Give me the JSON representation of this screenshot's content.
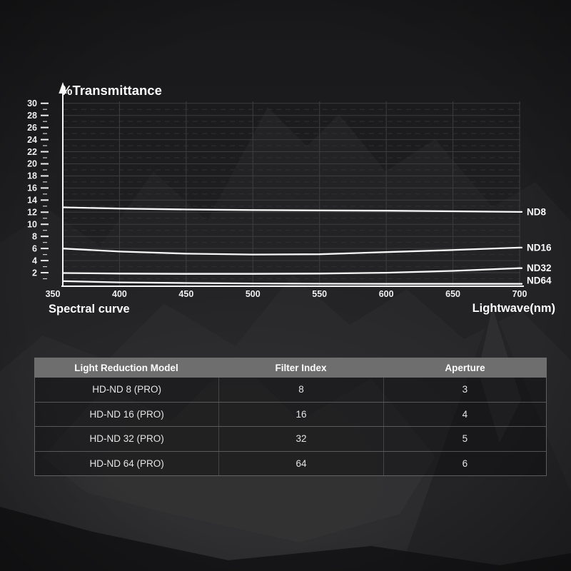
{
  "poster": {
    "chart_footer": "Spectral curve"
  },
  "chart_data": {
    "type": "line",
    "title": "%Transmittance",
    "xlabel": "Lightwave(nm)",
    "ylabel": "%Transmittance",
    "x": [
      350,
      400,
      450,
      500,
      550,
      600,
      650,
      700
    ],
    "xticks": [
      350,
      400,
      450,
      500,
      550,
      600,
      650,
      700
    ],
    "ylim": [
      0,
      30
    ],
    "ytick_step": 2,
    "grid": true,
    "legend_position": "right-end-of-line-labels",
    "series": [
      {
        "name": "ND8",
        "values": [
          12.8,
          12.6,
          12.45,
          12.35,
          12.3,
          12.25,
          12.15,
          12.05
        ]
      },
      {
        "name": "ND16",
        "values": [
          6.0,
          5.5,
          5.15,
          5.0,
          5.05,
          5.4,
          5.75,
          6.15
        ]
      },
      {
        "name": "ND32",
        "values": [
          1.95,
          1.85,
          1.8,
          1.8,
          1.85,
          2.0,
          2.3,
          2.75
        ]
      },
      {
        "name": "ND64",
        "values": [
          0.6,
          0.4,
          0.3,
          0.22,
          0.18,
          0.15,
          0.15,
          0.15
        ]
      }
    ]
  },
  "table": {
    "headers": [
      "Light Reduction Model",
      "Filter Index",
      "Aperture"
    ],
    "rows": [
      [
        "HD-ND 8 (PRO)",
        "8",
        "3"
      ],
      [
        "HD-ND 16 (PRO)",
        "16",
        "4"
      ],
      [
        "HD-ND 32 (PRO)",
        "32",
        "5"
      ],
      [
        "HD-ND 64 (PRO)",
        "64",
        "6"
      ]
    ]
  },
  "colors": {
    "background": "#1c1c1e",
    "curve": "#f7f7f7",
    "axis": "#f5f5f5",
    "grid_solid": "#3d3d3f",
    "grid_dashed": "#2f2f31",
    "table_header_bg": "#6e6e6e",
    "table_border": "#8a8a8a",
    "text": "#f2f2f2"
  }
}
